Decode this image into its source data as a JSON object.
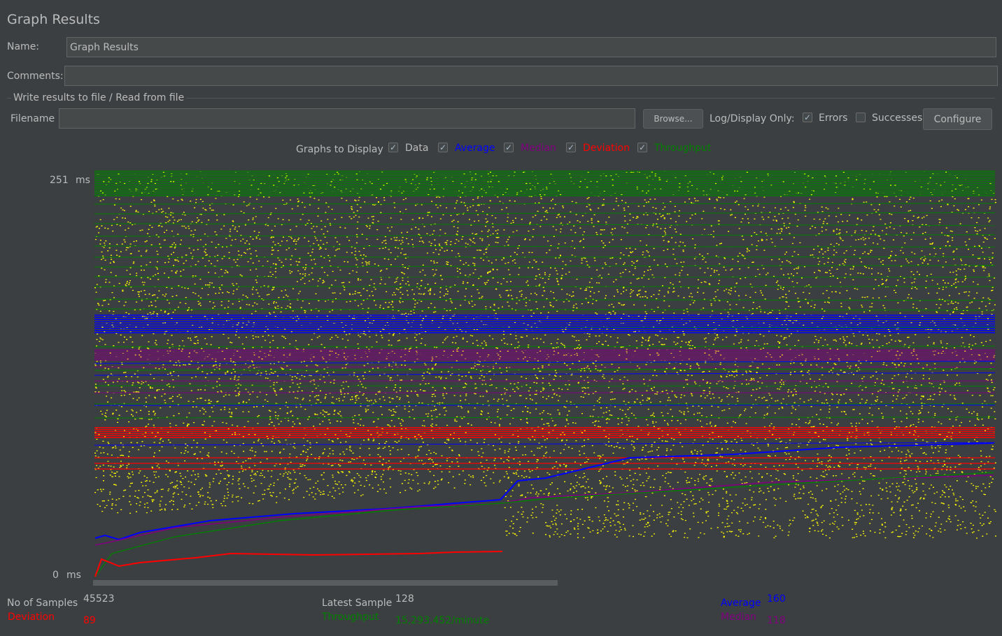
{
  "header": {
    "title": "Graph Results"
  },
  "name_field": {
    "label": "Name:",
    "value": "Graph Results"
  },
  "comments_field": {
    "label": "Comments:",
    "value": ""
  },
  "file_section": {
    "legend": "Write results to file / Read from file",
    "filename_label": "Filename",
    "filename_value": "",
    "browse_label": "Browse...",
    "log_display_label": "Log/Display Only:",
    "errors_label": "Errors",
    "errors_checked": true,
    "successes_label": "Successes",
    "successes_checked": false,
    "configure_label": "Configure"
  },
  "graphs_to_display": {
    "label": "Graphs to Display",
    "options": [
      {
        "label": "Data",
        "checked": true,
        "color": "#bbbbbb"
      },
      {
        "label": "Average",
        "checked": true,
        "color": "#0000ff"
      },
      {
        "label": "Median",
        "checked": true,
        "color": "#800080"
      },
      {
        "label": "Deviation",
        "checked": true,
        "color": "#ff0000"
      },
      {
        "label": "Throughput",
        "checked": true,
        "color": "#008000"
      }
    ]
  },
  "graph": {
    "y_max_label": "251",
    "y_min_label": "0",
    "y_unit": "ms",
    "y_range": [
      0,
      251
    ],
    "colors": {
      "data": "#ffff00",
      "average": "#0000ff",
      "median": "#800080",
      "deviation": "#ff0000",
      "throughput": "#008000"
    }
  },
  "stats": {
    "samples_label": "No of Samples",
    "samples_value": "45523",
    "deviation_label": "Deviation",
    "deviation_value": "89",
    "latest_label": "Latest Sample",
    "latest_value": "128",
    "throughput_label": "Throughput",
    "throughput_value": "15,293.452/minute",
    "average_label": "Average",
    "average_value": "160",
    "median_label": "Median",
    "median_value": "118"
  }
}
